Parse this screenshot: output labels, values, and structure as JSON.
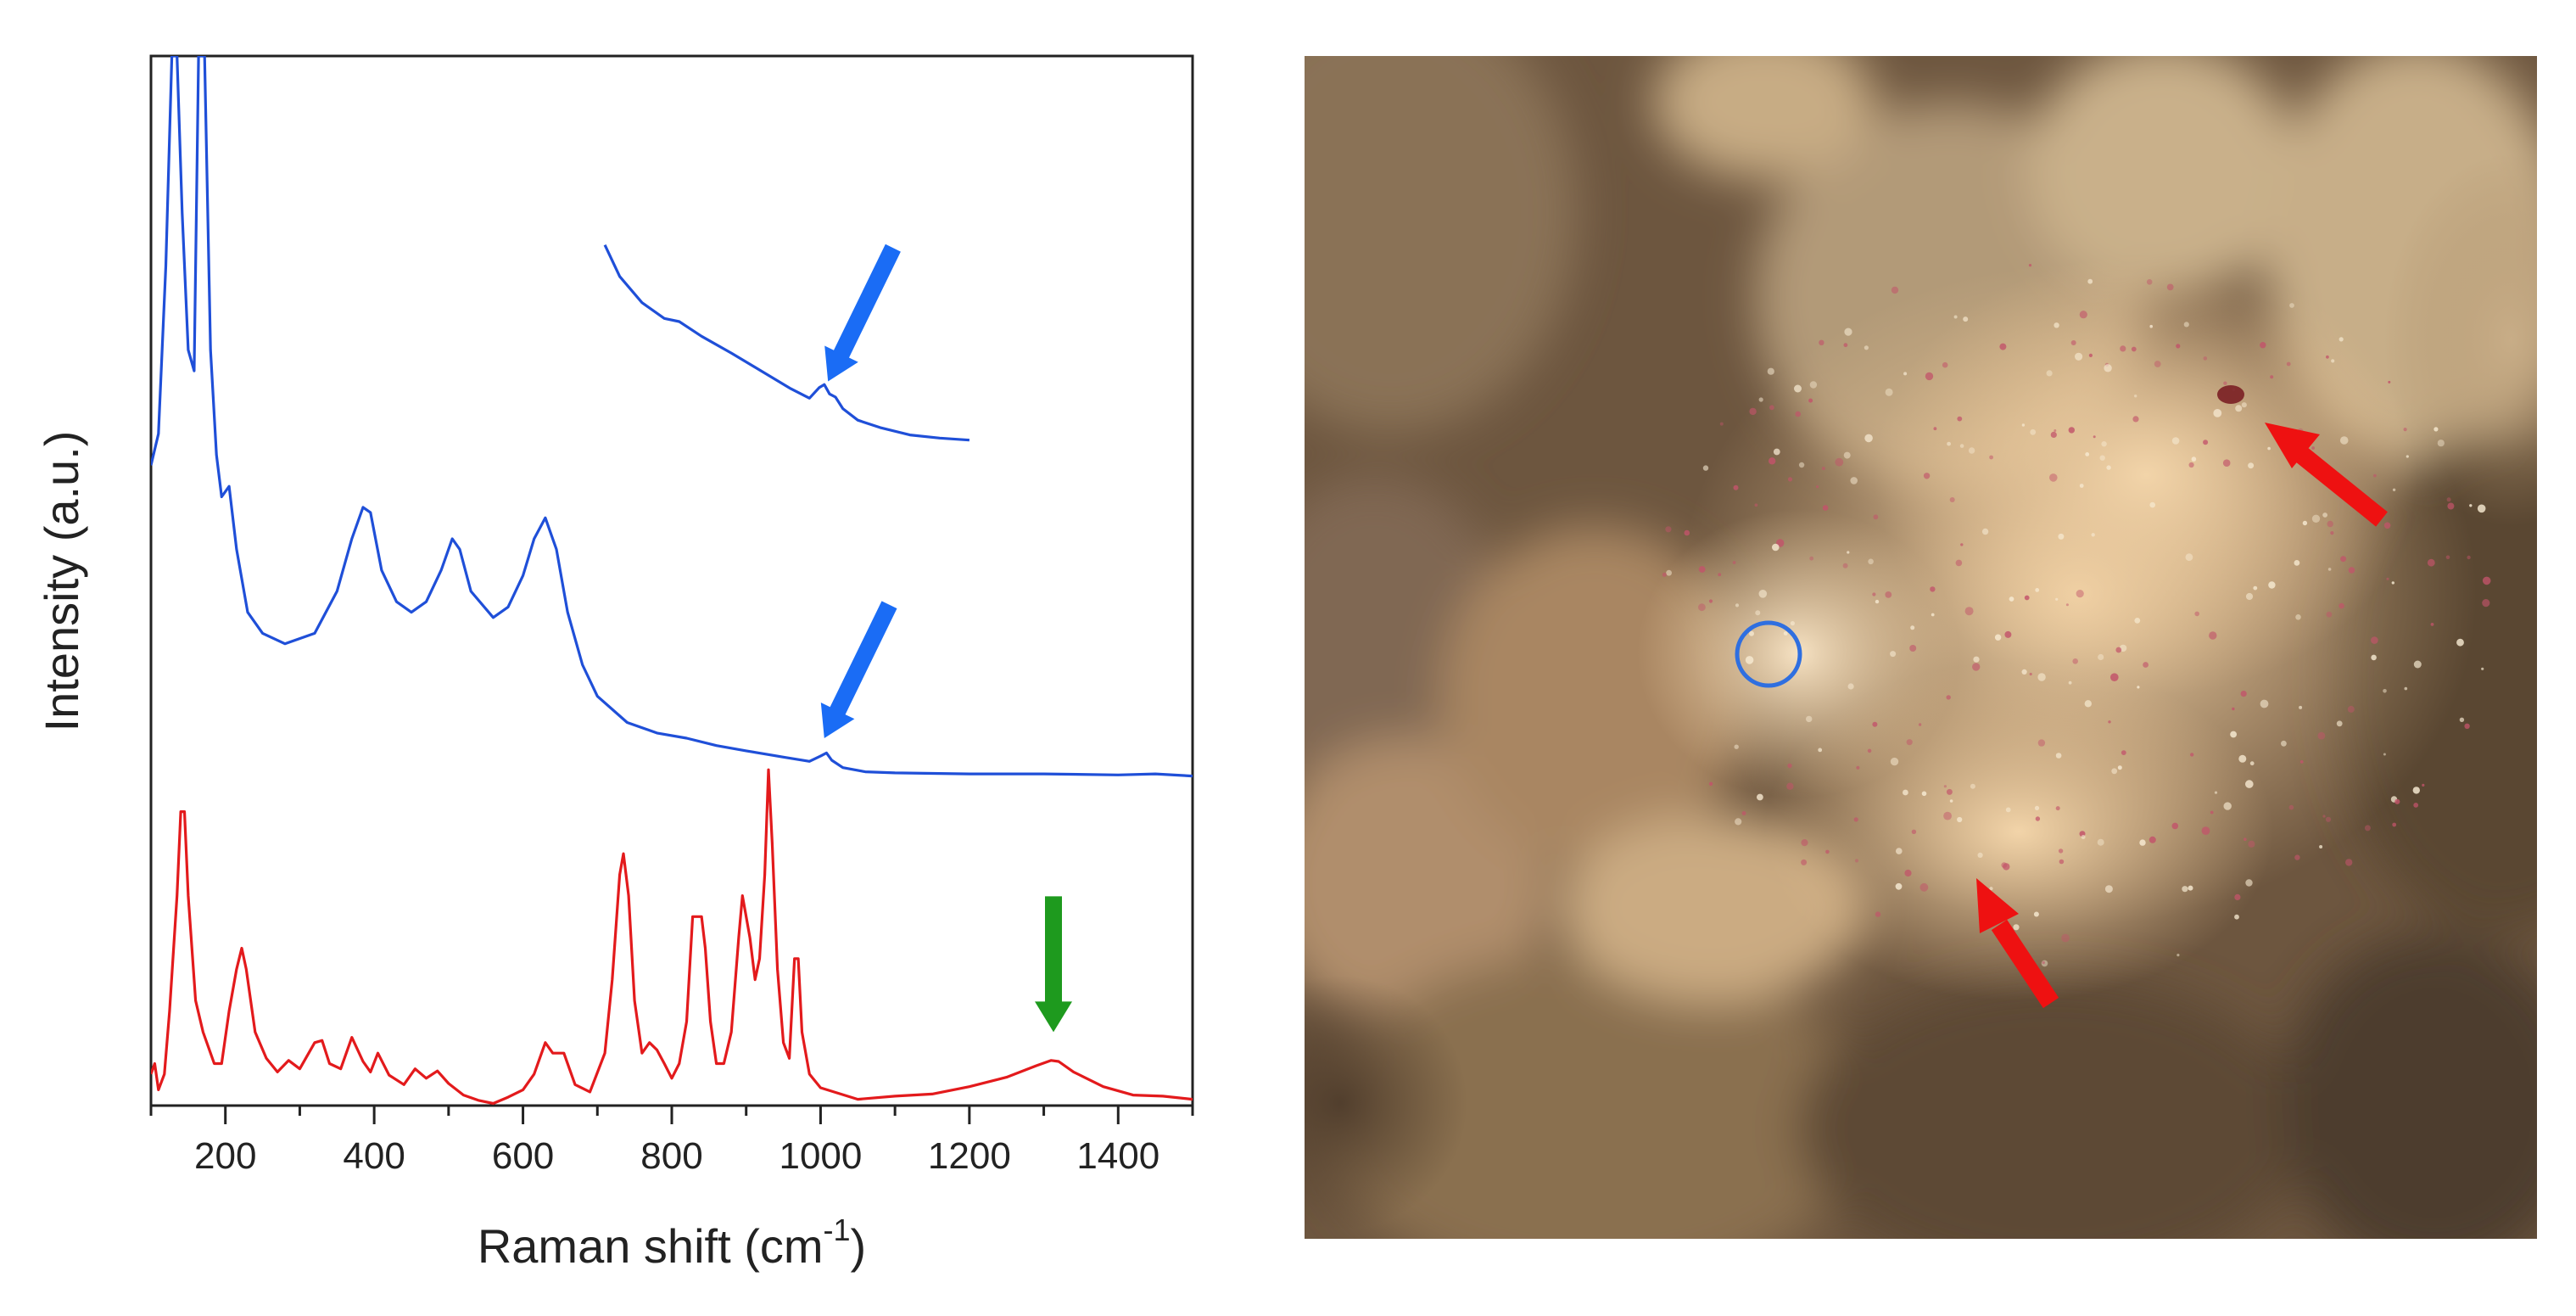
{
  "chart_data": {
    "type": "line",
    "xlabel": "Raman shift (cm",
    "xlabel_sup": "-1",
    "xlabel_close": ")",
    "ylabel": "Intensity (a.u.)",
    "xlim": [
      100,
      1500
    ],
    "ylim": [
      0,
      100
    ],
    "x_ticks": [
      200,
      400,
      600,
      800,
      1000,
      1200,
      1400
    ],
    "grid": false,
    "series": [
      {
        "color": "#1f4fd8",
        "points": [
          [
            100,
            61
          ],
          [
            110,
            64
          ],
          [
            120,
            80
          ],
          [
            128,
            100
          ],
          [
            135,
            100
          ],
          [
            142,
            85
          ],
          [
            150,
            72
          ],
          [
            158,
            70
          ],
          [
            164,
            100
          ],
          [
            172,
            100
          ],
          [
            180,
            72
          ],
          [
            188,
            62
          ],
          [
            195,
            58
          ],
          [
            205,
            59
          ],
          [
            215,
            53
          ],
          [
            230,
            47
          ],
          [
            250,
            45
          ],
          [
            280,
            44
          ],
          [
            320,
            45
          ],
          [
            350,
            49
          ],
          [
            370,
            54
          ],
          [
            385,
            57
          ],
          [
            395,
            56.5
          ],
          [
            410,
            51
          ],
          [
            430,
            48
          ],
          [
            450,
            47
          ],
          [
            470,
            48
          ],
          [
            490,
            51
          ],
          [
            505,
            54
          ],
          [
            515,
            53
          ],
          [
            530,
            49
          ],
          [
            560,
            46.5
          ],
          [
            580,
            47.5
          ],
          [
            600,
            50.5
          ],
          [
            615,
            54
          ],
          [
            630,
            56
          ],
          [
            645,
            53
          ],
          [
            660,
            47
          ],
          [
            680,
            42
          ],
          [
            700,
            39
          ],
          [
            740,
            36.5
          ],
          [
            780,
            35.5
          ],
          [
            820,
            35
          ],
          [
            860,
            34.3
          ],
          [
            900,
            33.8
          ],
          [
            950,
            33.2
          ],
          [
            985,
            32.8
          ],
          [
            1000,
            33.3
          ],
          [
            1008,
            33.6
          ],
          [
            1015,
            32.9
          ],
          [
            1030,
            32.2
          ],
          [
            1060,
            31.8
          ],
          [
            1100,
            31.7
          ],
          [
            1200,
            31.6
          ],
          [
            1300,
            31.6
          ],
          [
            1400,
            31.5
          ],
          [
            1450,
            31.6
          ],
          [
            1500,
            31.4
          ]
        ]
      },
      {
        "color": "#1f4fd8",
        "points": [
          [
            710,
            82
          ],
          [
            730,
            79
          ],
          [
            760,
            76.5
          ],
          [
            790,
            75
          ],
          [
            810,
            74.7
          ],
          [
            840,
            73.3
          ],
          [
            880,
            71.7
          ],
          [
            920,
            70
          ],
          [
            960,
            68.3
          ],
          [
            985,
            67.4
          ],
          [
            998,
            68.4
          ],
          [
            1005,
            68.7
          ],
          [
            1012,
            67.8
          ],
          [
            1020,
            67.5
          ],
          [
            1030,
            66.4
          ],
          [
            1050,
            65.3
          ],
          [
            1080,
            64.6
          ],
          [
            1120,
            63.9
          ],
          [
            1160,
            63.6
          ],
          [
            1200,
            63.4
          ]
        ]
      },
      {
        "color": "#e31a1c",
        "points": [
          [
            100,
            3
          ],
          [
            105,
            4
          ],
          [
            110,
            1.5
          ],
          [
            118,
            3
          ],
          [
            125,
            9
          ],
          [
            135,
            20
          ],
          [
            140,
            28
          ],
          [
            145,
            28
          ],
          [
            150,
            20
          ],
          [
            160,
            10
          ],
          [
            170,
            7
          ],
          [
            185,
            4
          ],
          [
            195,
            4
          ],
          [
            205,
            9
          ],
          [
            215,
            13
          ],
          [
            222,
            15
          ],
          [
            228,
            13
          ],
          [
            240,
            7
          ],
          [
            255,
            4.5
          ],
          [
            270,
            3.2
          ],
          [
            285,
            4.3
          ],
          [
            300,
            3.5
          ],
          [
            320,
            6
          ],
          [
            330,
            6.2
          ],
          [
            340,
            4
          ],
          [
            355,
            3.5
          ],
          [
            370,
            6.5
          ],
          [
            385,
            4.2
          ],
          [
            395,
            3.2
          ],
          [
            405,
            5
          ],
          [
            420,
            2.9
          ],
          [
            440,
            2
          ],
          [
            455,
            3.5
          ],
          [
            470,
            2.6
          ],
          [
            485,
            3.3
          ],
          [
            500,
            2.1
          ],
          [
            520,
            1
          ],
          [
            540,
            0.5
          ],
          [
            560,
            0.2
          ],
          [
            580,
            0.8
          ],
          [
            600,
            1.5
          ],
          [
            615,
            3
          ],
          [
            630,
            6
          ],
          [
            640,
            5
          ],
          [
            655,
            5
          ],
          [
            670,
            2
          ],
          [
            690,
            1.3
          ],
          [
            710,
            5
          ],
          [
            720,
            12
          ],
          [
            730,
            22
          ],
          [
            735,
            24
          ],
          [
            742,
            20
          ],
          [
            750,
            10
          ],
          [
            760,
            5
          ],
          [
            770,
            6
          ],
          [
            780,
            5.3
          ],
          [
            790,
            4
          ],
          [
            800,
            2.6
          ],
          [
            810,
            4
          ],
          [
            820,
            8
          ],
          [
            828,
            18
          ],
          [
            835,
            18
          ],
          [
            840,
            18
          ],
          [
            845,
            15
          ],
          [
            852,
            8
          ],
          [
            860,
            4
          ],
          [
            870,
            4
          ],
          [
            880,
            7
          ],
          [
            890,
            16
          ],
          [
            895,
            20
          ],
          [
            900,
            18
          ],
          [
            905,
            16
          ],
          [
            912,
            12
          ],
          [
            918,
            14
          ],
          [
            925,
            22
          ],
          [
            930,
            32
          ],
          [
            935,
            25
          ],
          [
            942,
            13
          ],
          [
            950,
            6
          ],
          [
            958,
            4.5
          ],
          [
            965,
            14
          ],
          [
            970,
            14
          ],
          [
            975,
            7
          ],
          [
            985,
            3
          ],
          [
            1000,
            1.7
          ],
          [
            1050,
            0.6
          ],
          [
            1100,
            0.9
          ],
          [
            1150,
            1.1
          ],
          [
            1200,
            1.8
          ],
          [
            1250,
            2.7
          ],
          [
            1290,
            3.8
          ],
          [
            1310,
            4.3
          ],
          [
            1320,
            4.2
          ],
          [
            1340,
            3.2
          ],
          [
            1380,
            1.8
          ],
          [
            1420,
            1
          ],
          [
            1460,
            0.9
          ],
          [
            1500,
            0.6
          ]
        ]
      }
    ],
    "annotations": [
      {
        "type": "arrow",
        "color": "#1a6cf5",
        "points_to": [
          1010,
          69
        ]
      },
      {
        "type": "arrow",
        "color": "#1a6cf5",
        "points_to": [
          1005,
          35
        ]
      },
      {
        "type": "arrow",
        "color": "#1e9a1e",
        "points_to": [
          1313,
          7
        ]
      }
    ]
  },
  "micrograph": {
    "markers": [
      {
        "shape": "circle",
        "color": "#2f6fe0"
      },
      {
        "shape": "arrow",
        "color": "#ee1111"
      },
      {
        "shape": "arrow",
        "color": "#ee1111"
      }
    ]
  }
}
